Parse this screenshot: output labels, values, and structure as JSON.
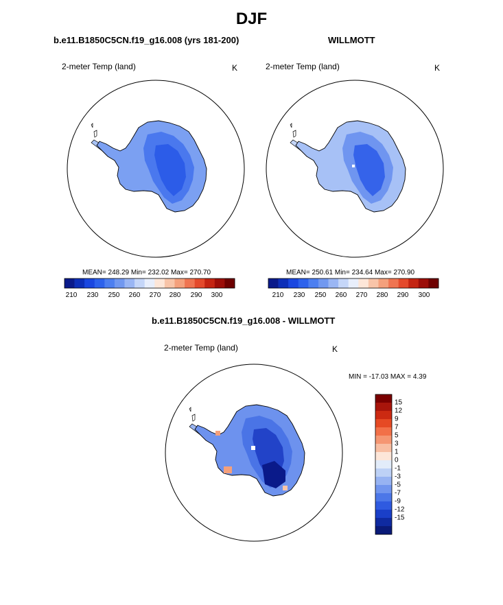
{
  "title": "DJF",
  "panels": [
    {
      "case_title": "b.e11.B1850C5CN.f19_g16.008 (yrs 181-200)",
      "variable_label": "2-meter Temp (land)",
      "units": "K",
      "stats": "MEAN= 248.29  Min= 232.02  Max= 270.70"
    },
    {
      "case_title": "WILLMOTT",
      "variable_label": "2-meter Temp (land)",
      "units": "K",
      "stats": "MEAN= 250.61  Min= 234.64  Max= 270.90"
    },
    {
      "case_title": "b.e11.B1850C5CN.f19_g16.008 - WILLMOTT",
      "variable_label": "2-meter Temp (land)",
      "units": "K",
      "stats": "MIN = -17.03 MAX =   4.39"
    }
  ],
  "colorbar_abs": {
    "tick_labels": [
      "210",
      "230",
      "250",
      "260",
      "270",
      "280",
      "290",
      "300"
    ],
    "colors": [
      "#0a1a8a",
      "#0d2fb8",
      "#1a47e0",
      "#2d62ec",
      "#4d7ff0",
      "#7198f0",
      "#9ab6f4",
      "#c5d6f8",
      "#e8eefb",
      "#fde6d8",
      "#f8c4a8",
      "#f4a07c",
      "#ef7451",
      "#e44a2c",
      "#c42412",
      "#9c0d08",
      "#6e0000"
    ]
  },
  "colorbar_diff": {
    "labels": [
      "15",
      "12",
      "9",
      "7",
      "5",
      "3",
      "1",
      "0",
      "-1",
      "-3",
      "-5",
      "-7",
      "-9",
      "-12",
      "-15"
    ],
    "colors": [
      "#7a0000",
      "#a8150b",
      "#cc2a12",
      "#e64a24",
      "#f27048",
      "#f59672",
      "#f8bea2",
      "#fde6d8",
      "#e2ecfa",
      "#bdd1f6",
      "#97b3f2",
      "#7195ee",
      "#4c77e8",
      "#2f5ae0",
      "#1a3fc8",
      "#0f2aa0",
      "#0a1a78"
    ]
  },
  "maps": [
    {
      "name": "model",
      "colors": {
        "outer": "#7ba0f2",
        "mid": "#4a78ee",
        "inner": "#2c5ce8",
        "pen": "#a9c3f5"
      }
    },
    {
      "name": "obs",
      "colors": {
        "outer": "#a7c1f6",
        "mid": "#6f95f0",
        "inner": "#3563ea",
        "pen": "#c3d5f8"
      }
    },
    {
      "name": "diff",
      "colors": {
        "outer": "#6d92ee",
        "mid": "#4a74e6",
        "inner": "#2243c8",
        "pen": "#9ab5f2"
      }
    }
  ]
}
